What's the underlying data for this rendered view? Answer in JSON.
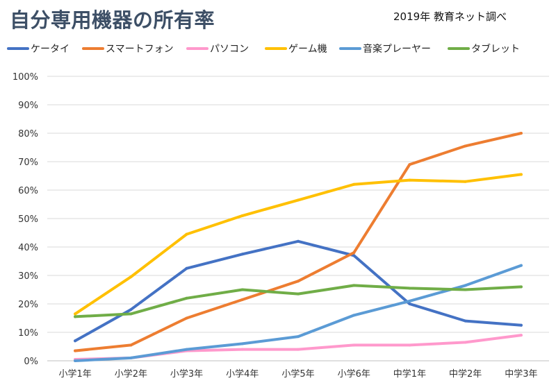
{
  "header": {
    "title": "自分専用機器の所有率",
    "source": "2019年 教育ネット調べ"
  },
  "chart_data": {
    "type": "line",
    "title": "自分専用機器の所有率",
    "subtitle": "2019年 教育ネット調べ",
    "categories": [
      "小学1年",
      "小学2年",
      "小学3年",
      "小学4年",
      "小学5年",
      "小学6年",
      "中学1年",
      "中学2年",
      "中学3年"
    ],
    "ylim": [
      0,
      100
    ],
    "yticks": [
      0,
      10,
      20,
      30,
      40,
      50,
      60,
      70,
      80,
      90,
      100
    ],
    "ytick_labels": [
      "0%",
      "10%",
      "20%",
      "30%",
      "40%",
      "50%",
      "60%",
      "70%",
      "80%",
      "90%",
      "100%"
    ],
    "grid": true,
    "legend_position": "top",
    "series": [
      {
        "name": "ケータイ",
        "color": "#4472c4",
        "values": [
          7,
          18,
          32.5,
          37.5,
          42,
          37,
          20,
          14,
          12.5
        ]
      },
      {
        "name": "スマートフォン",
        "color": "#ed7d31",
        "values": [
          3.5,
          5.5,
          15,
          21.5,
          28,
          38,
          69,
          75.5,
          80
        ]
      },
      {
        "name": "パソコン",
        "color": "#ff99cc",
        "values": [
          0.5,
          1,
          3.5,
          4,
          4,
          5.5,
          5.5,
          6.5,
          9
        ]
      },
      {
        "name": "ゲーム機",
        "color": "#ffc000",
        "values": [
          16.5,
          29.5,
          44.5,
          51,
          56.5,
          62,
          63.5,
          63,
          65.5
        ]
      },
      {
        "name": "音楽プレーヤー",
        "color": "#5b9bd5",
        "values": [
          0,
          1,
          4,
          6,
          8.5,
          16,
          21,
          26.5,
          33.5
        ]
      },
      {
        "name": "タブレット",
        "color": "#70ad47",
        "values": [
          15.5,
          16.5,
          22,
          25,
          23.5,
          26.5,
          25.5,
          25,
          26
        ]
      }
    ]
  }
}
